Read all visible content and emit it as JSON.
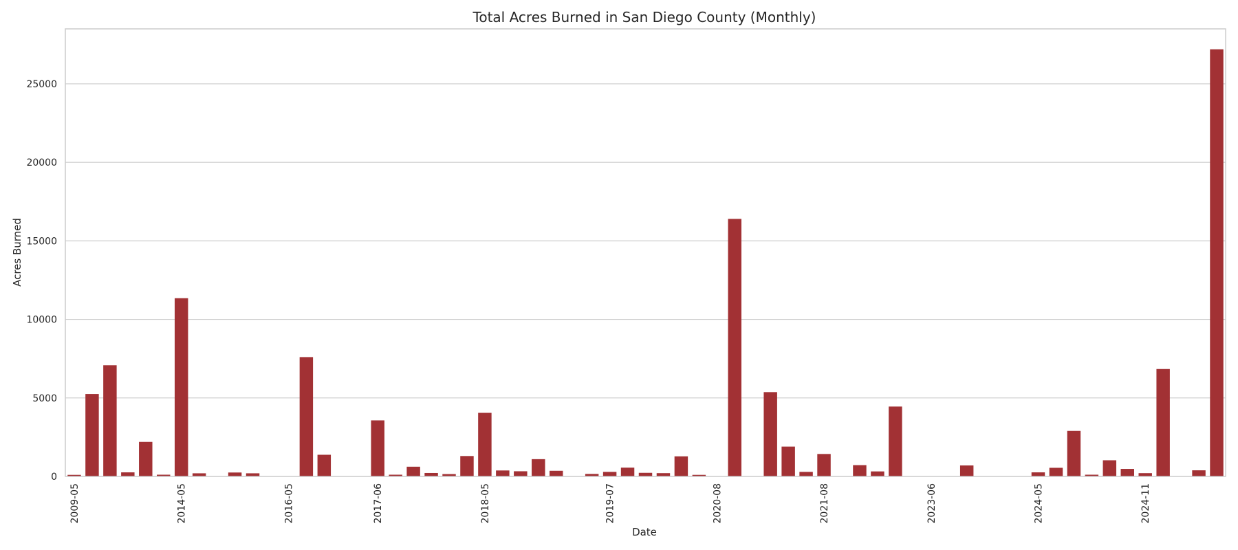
{
  "chart_data": {
    "type": "bar",
    "title": "Total Acres Burned in San Diego County (Monthly)",
    "xlabel": "Date",
    "ylabel": "Acres Burned",
    "ylim": [
      0,
      28500
    ],
    "yticks": [
      0,
      5000,
      10000,
      15000,
      20000,
      25000
    ],
    "xtick_labels": [
      "2009-05",
      "2014-05",
      "2016-05",
      "2017-06",
      "2018-05",
      "2019-07",
      "2020-08",
      "2021-08",
      "2023-06",
      "2024-05",
      "2024-11"
    ],
    "grid": "horizontal",
    "bar_color": "#a23134",
    "values": [
      100,
      5250,
      7080,
      260,
      2200,
      110,
      11350,
      200,
      0,
      250,
      200,
      0,
      0,
      7600,
      1380,
      0,
      0,
      3570,
      110,
      620,
      220,
      150,
      1300,
      4050,
      380,
      330,
      1100,
      360,
      0,
      160,
      290,
      560,
      230,
      210,
      1280,
      100,
      0,
      16400,
      0,
      5370,
      1900,
      290,
      1430,
      0,
      720,
      320,
      4450,
      0,
      0,
      0,
      700,
      0,
      0,
      0,
      260,
      550,
      2900,
      110,
      1030,
      480,
      210,
      6840,
      0,
      390,
      27200
    ],
    "tick_positions": [
      0,
      6,
      12,
      17,
      23,
      30,
      36,
      42,
      48,
      54,
      60
    ]
  }
}
